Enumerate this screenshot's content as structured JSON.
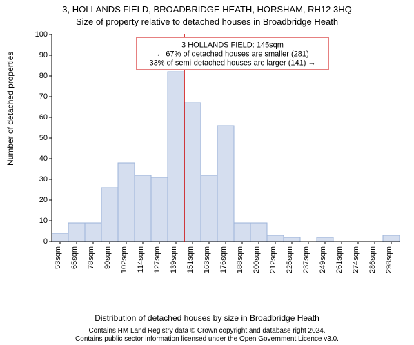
{
  "title_line1": "3, HOLLANDS FIELD, BROADBRIDGE HEATH, HORSHAM, RH12 3HQ",
  "title_line2": "Size of property relative to detached houses in Broadbridge Heath",
  "ylabel": "Number of detached properties",
  "xlabel": "Distribution of detached houses by size in Broadbridge Heath",
  "copyright_line1": "Contains HM Land Registry data © Crown copyright and database right 2024.",
  "copyright_line2": "Contains public sector information licensed under the Open Government Licence v3.0.",
  "chart": {
    "type": "histogram",
    "ylim": [
      0,
      100
    ],
    "ytick_step": 10,
    "x_categories": [
      "53sqm",
      "65sqm",
      "78sqm",
      "90sqm",
      "102sqm",
      "114sqm",
      "127sqm",
      "139sqm",
      "151sqm",
      "163sqm",
      "176sqm",
      "188sqm",
      "200sqm",
      "212sqm",
      "225sqm",
      "237sqm",
      "249sqm",
      "261sqm",
      "274sqm",
      "286sqm",
      "298sqm"
    ],
    "values": [
      4,
      9,
      9,
      26,
      38,
      32,
      31,
      82,
      67,
      32,
      56,
      9,
      9,
      3,
      2,
      0,
      2,
      0,
      0,
      0,
      3
    ],
    "bar_fill": "#d5deef",
    "bar_stroke": "#9bb3da",
    "background": "#ffffff",
    "ref_line": {
      "index": 8,
      "color": "#cc0000"
    },
    "annotation": {
      "border_color": "#cc0000",
      "lines": [
        "3 HOLLANDS FIELD: 145sqm",
        "← 67% of detached houses are smaller (281)",
        "33% of semi-detached houses are larger (141) →"
      ]
    }
  },
  "typography": {
    "title_fontsize": 13,
    "label_fontsize": 12,
    "tick_fontsize": 11,
    "anno_fontsize": 11,
    "copyright_fontsize": 10,
    "font_family": "Arial"
  }
}
